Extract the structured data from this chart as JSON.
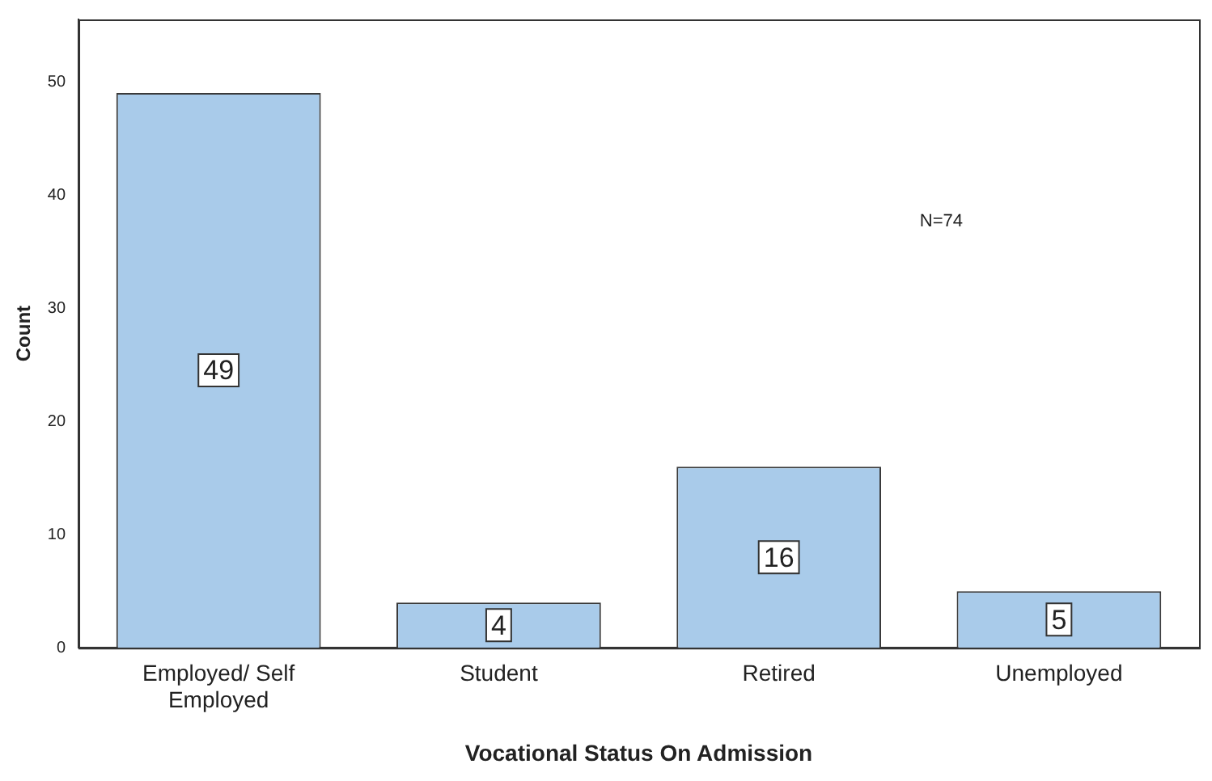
{
  "chart_data": {
    "type": "bar",
    "xlabel": "Vocational Status On Admission",
    "ylabel": "Count",
    "categories": [
      "Employed/ Self Employed",
      "Student",
      "Retired",
      "Unemployed"
    ],
    "values": [
      49,
      4,
      16,
      5
    ],
    "color": "#a9cbea",
    "ylim": [
      0,
      55.5
    ],
    "yticks": [
      0,
      10,
      20,
      30,
      40,
      50
    ],
    "grid": false,
    "data_labels": true,
    "annotations": [
      "N=74"
    ]
  }
}
